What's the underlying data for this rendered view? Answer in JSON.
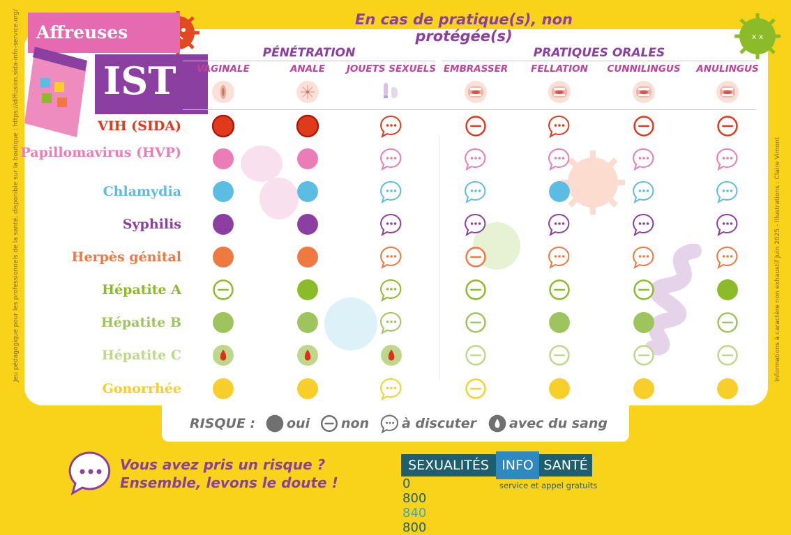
{
  "headline": "En cas de pratique(s), non protégée(s)",
  "logo": {
    "line1": "Affreuses",
    "line2": "IST"
  },
  "side_left": "Jeu pédagogique pour les professionnels de la santé, disponible sur la boutique : https://diffusion.sida-info-service.org/",
  "side_right": "Informations à caractère non exhaustif   Juin 2025 -   Illustrations : Claire Vimont",
  "groups": [
    {
      "label": "PÉNÉTRATION"
    },
    {
      "label": "PRATIQUES ORALES"
    }
  ],
  "columns": [
    {
      "label": "VAGINALE",
      "icon": "vulva-icon"
    },
    {
      "label": "ANALE",
      "icon": "anus-icon"
    },
    {
      "label": "JOUETS SEXUELS",
      "icon": "sex-toy-icon"
    },
    {
      "label": "EMBRASSER",
      "icon": "mouth-icon"
    },
    {
      "label": "FELLATION",
      "icon": "mouth-icon"
    },
    {
      "label": "CUNNILINGUS",
      "icon": "mouth-icon"
    },
    {
      "label": "ANULINGUS",
      "icon": "mouth-icon"
    }
  ],
  "rows": [
    {
      "label": "VIH (SIDA)",
      "color": "#e03a1c",
      "cells": [
        "oui-ring",
        "oui-ring",
        "discuter",
        "non",
        "discuter",
        "non",
        "non"
      ]
    },
    {
      "label": "Papillomavirus (HVP)",
      "color": "#ea7cb6",
      "cells": [
        "oui",
        "oui",
        "discuter",
        "discuter",
        "discuter",
        "discuter",
        "discuter"
      ]
    },
    {
      "label": "Chlamydia",
      "color": "#5cbde2",
      "cells": [
        "oui",
        "oui",
        "discuter",
        "discuter",
        "oui",
        "discuter",
        "discuter"
      ]
    },
    {
      "label": "Syphilis",
      "color": "#8b3fa0",
      "cells": [
        "oui",
        "oui",
        "discuter",
        "discuter",
        "discuter",
        "discuter",
        "discuter"
      ]
    },
    {
      "label": "Herpès génital",
      "color": "#f07841",
      "cells": [
        "oui",
        "oui",
        "discuter",
        "non",
        "discuter",
        "discuter",
        "discuter"
      ]
    },
    {
      "label": "Hépatite A",
      "color": "#8cbb2a",
      "cells": [
        "non",
        "oui",
        "discuter",
        "non",
        "non",
        "non",
        "oui"
      ]
    },
    {
      "label": "Hépatite B",
      "color": "#9ec45e",
      "cells": [
        "oui",
        "oui",
        "discuter",
        "non",
        "oui",
        "oui",
        "non"
      ]
    },
    {
      "label": "Hépatite C",
      "color": "#bdd88a",
      "cells": [
        "sang",
        "sang",
        "sang",
        "non",
        "non",
        "non",
        "non"
      ]
    },
    {
      "label": "Gonorrhée",
      "color": "#f8cf2a",
      "cells": [
        "oui",
        "oui",
        "discuter",
        "non",
        "oui",
        "oui",
        "oui"
      ]
    }
  ],
  "legend": {
    "title": "RISQUE :",
    "items": [
      {
        "type": "oui",
        "label": "oui"
      },
      {
        "type": "non",
        "label": "non"
      },
      {
        "type": "discuter",
        "label": "à discuter"
      },
      {
        "type": "sang",
        "label": "avec du sang"
      }
    ],
    "color": "#707070"
  },
  "cta": {
    "line1": "Vous avez pris un risque ?",
    "line2": "Ensemble, levons le doute !"
  },
  "sis": {
    "part1": "SEXUALITÉS",
    "part2": "INFO",
    "part3": "SANTÉ",
    "phone1": "0 800",
    "phone2": "840",
    "phone3": "800",
    "note": "service et appel gratuits"
  }
}
